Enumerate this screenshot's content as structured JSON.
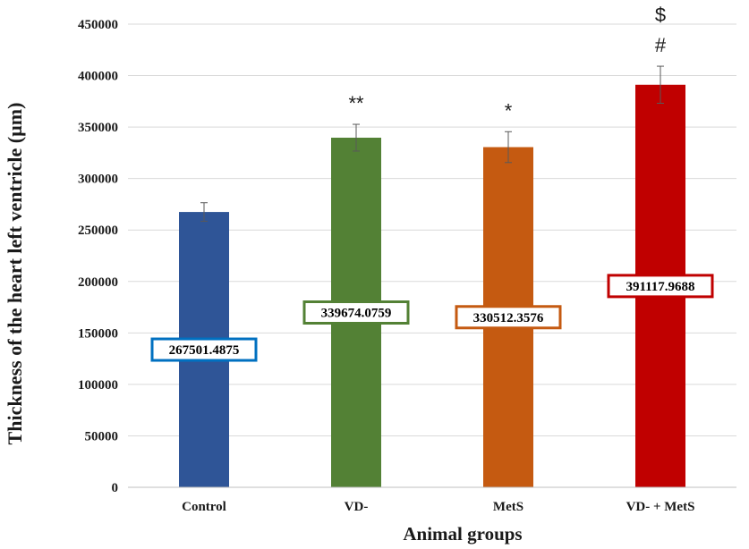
{
  "chart_data": {
    "type": "bar",
    "title": "",
    "xlabel": "Animal groups",
    "ylabel": "Thickness of the heart left ventricle  (µm)",
    "ylim": [
      0,
      450000
    ],
    "yticks": [
      "0",
      "50000",
      "100000",
      "150000",
      "200000",
      "250000",
      "300000",
      "350000",
      "400000",
      "450000"
    ],
    "categories": [
      "Control",
      "VD-",
      "MetS",
      "VD- + MetS"
    ],
    "values": [
      267501.4875,
      339674.0759,
      330512.3576,
      391117.9688
    ],
    "value_labels": [
      "267501.4875",
      "339674.0759",
      "330512.3576",
      "391117.9688"
    ],
    "errors": [
      9000,
      13000,
      15000,
      18000
    ],
    "annotations": [
      [],
      [
        "**"
      ],
      [
        "*"
      ],
      [
        "#",
        "$"
      ]
    ],
    "colors": [
      "#2f5597",
      "#538135",
      "#c55a11",
      "#c00000"
    ],
    "label_box_colors": [
      "#0070c0",
      "#538135",
      "#c55a11",
      "#c00000"
    ],
    "grid": true,
    "legend": "none"
  }
}
